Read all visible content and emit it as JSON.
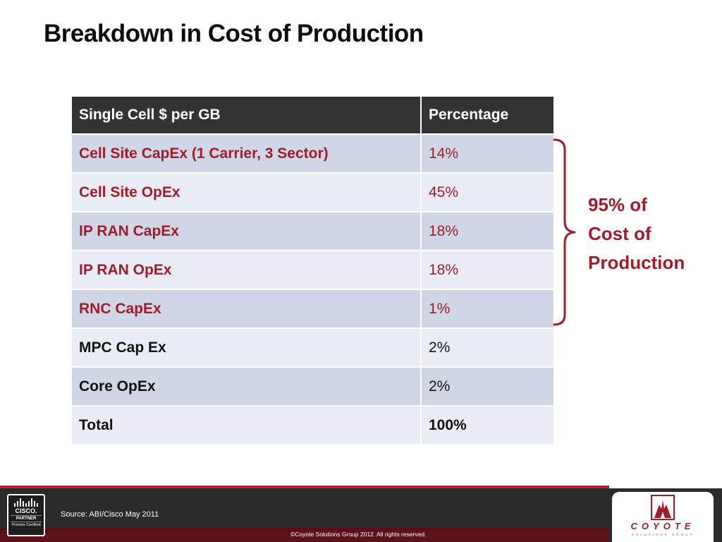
{
  "slide": {
    "title": "Breakdown in Cost of Production"
  },
  "table": {
    "headers": [
      "Single Cell $ per GB",
      "Percentage"
    ],
    "rows": [
      {
        "label": "Cell Site CapEx (1 Carrier, 3 Sector)",
        "value": "14%"
      },
      {
        "label": "Cell Site OpEx",
        "value": "45%"
      },
      {
        "label": "IP RAN CapEx",
        "value": "18%"
      },
      {
        "label": "IP RAN OpEx",
        "value": "18%"
      },
      {
        "label": "RNC CapEx",
        "value": "1%"
      },
      {
        "label": "MPC Cap Ex",
        "value": "2%"
      },
      {
        "label": "Core OpEx",
        "value": "2%"
      },
      {
        "label": "Total",
        "value": "100%"
      }
    ]
  },
  "callout": {
    "lines": [
      "95% of",
      "Cost of",
      "Production"
    ]
  },
  "footer": {
    "source": "Source: ABI/Cisco May 2011",
    "copyright": "©Coyote Solutions Group 2012.  All rights reserved.",
    "cisco_badge": {
      "brand": "CISCO.",
      "partner": "PARTNER",
      "certification": "Premier Certified"
    },
    "coyote_logo": {
      "name": "COYOTE",
      "tagline": "SOLUTIONS GROUP"
    }
  },
  "colors": {
    "accent_red": "#a01c2a",
    "header_dark": "#333333",
    "row_odd": "#d0d6e6",
    "row_even": "#e9ecf4",
    "footer_dark": "#2b2b2b"
  }
}
